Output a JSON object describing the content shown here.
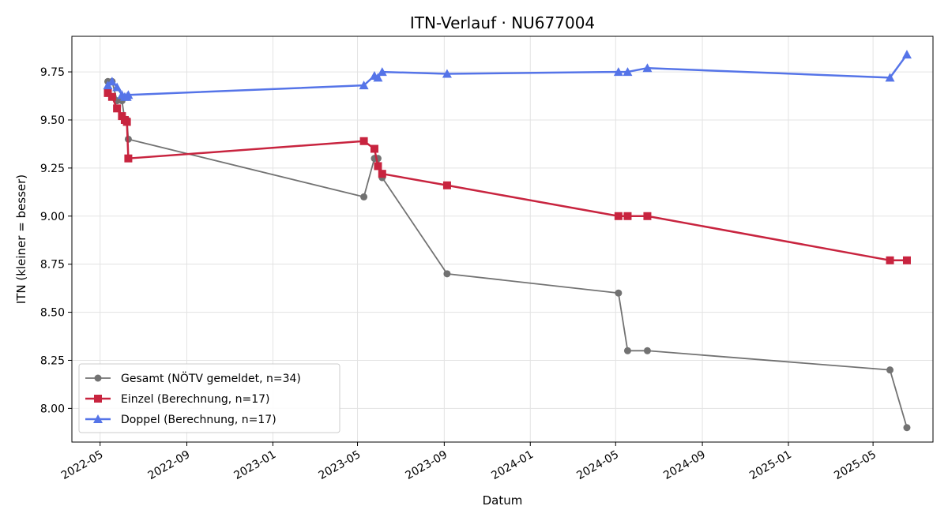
{
  "chart_data": {
    "type": "line",
    "title": "ITN-Verlauf · NU677004",
    "xlabel": "Datum",
    "ylabel": "ITN  (kleiner = besser)",
    "xlim": [
      "2022-03-22",
      "2025-07-25"
    ],
    "ylim": [
      7.825,
      9.935
    ],
    "x_ticks": [
      "2022-05-01",
      "2022-09-01",
      "2023-01-01",
      "2023-05-01",
      "2023-09-01",
      "2024-01-01",
      "2024-05-01",
      "2024-09-01",
      "2025-01-01",
      "2025-05-01"
    ],
    "x_tick_labels": [
      "2022-05",
      "2022-09",
      "2023-01",
      "2023-05",
      "2023-09",
      "2024-01",
      "2024-05",
      "2024-09",
      "2025-01",
      "2025-05"
    ],
    "y_ticks": [
      8.0,
      8.25,
      8.5,
      8.75,
      9.0,
      9.25,
      9.5,
      9.75
    ],
    "y_tick_labels": [
      "8.00",
      "8.25",
      "8.50",
      "8.75",
      "9.00",
      "9.25",
      "9.50",
      "9.75"
    ],
    "grid": true,
    "legend_position": "lower-left",
    "series": [
      {
        "name": "Gesamt (NÖTV gemeldet, n=34)",
        "color": "#444444",
        "marker": "circle",
        "points": [
          [
            "2022-05-12",
            9.7
          ],
          [
            "2022-05-18",
            9.7
          ],
          [
            "2022-05-25",
            9.6
          ],
          [
            "2022-06-01",
            9.6
          ],
          [
            "2022-06-05",
            9.5
          ],
          [
            "2022-06-08",
            9.5
          ],
          [
            "2022-06-10",
            9.4
          ],
          [
            "2023-05-10",
            9.1
          ],
          [
            "2023-05-25",
            9.3
          ],
          [
            "2023-05-30",
            9.3
          ],
          [
            "2023-06-05",
            9.2
          ],
          [
            "2023-09-05",
            8.7
          ],
          [
            "2024-05-05",
            8.6
          ],
          [
            "2024-05-18",
            8.3
          ],
          [
            "2024-06-15",
            8.3
          ],
          [
            "2025-05-25",
            8.2
          ],
          [
            "2025-06-18",
            7.9
          ]
        ]
      },
      {
        "name": "Einzel (Berechnung, n=17)",
        "color": "#c8243f",
        "marker": "square",
        "points": [
          [
            "2022-05-12",
            9.64
          ],
          [
            "2022-05-18",
            9.62
          ],
          [
            "2022-05-25",
            9.56
          ],
          [
            "2022-06-01",
            9.52
          ],
          [
            "2022-06-05",
            9.5
          ],
          [
            "2022-06-08",
            9.49
          ],
          [
            "2022-06-10",
            9.3
          ],
          [
            "2023-05-10",
            9.39
          ],
          [
            "2023-05-25",
            9.35
          ],
          [
            "2023-05-30",
            9.26
          ],
          [
            "2023-06-05",
            9.22
          ],
          [
            "2023-09-05",
            9.16
          ],
          [
            "2024-05-05",
            9.0
          ],
          [
            "2024-05-18",
            9.0
          ],
          [
            "2024-06-15",
            9.0
          ],
          [
            "2025-05-25",
            8.77
          ],
          [
            "2025-06-18",
            8.77
          ]
        ]
      },
      {
        "name": "Doppel (Berechnung, n=17)",
        "color": "#5574e8",
        "marker": "triangle",
        "points": [
          [
            "2022-05-12",
            9.68
          ],
          [
            "2022-05-18",
            9.7
          ],
          [
            "2022-05-25",
            9.67
          ],
          [
            "2022-06-01",
            9.63
          ],
          [
            "2022-06-05",
            9.62
          ],
          [
            "2022-06-08",
            9.62
          ],
          [
            "2022-06-10",
            9.63
          ],
          [
            "2023-05-10",
            9.68
          ],
          [
            "2023-05-25",
            9.73
          ],
          [
            "2023-05-30",
            9.72
          ],
          [
            "2023-06-05",
            9.75
          ],
          [
            "2023-09-05",
            9.74
          ],
          [
            "2024-05-05",
            9.75
          ],
          [
            "2024-05-18",
            9.75
          ],
          [
            "2024-06-15",
            9.77
          ],
          [
            "2025-05-25",
            9.72
          ],
          [
            "2025-06-18",
            9.84
          ]
        ]
      }
    ]
  }
}
